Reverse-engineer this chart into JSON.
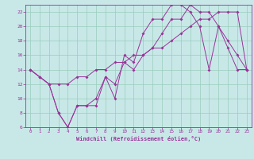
{
  "xlabel": "Windchill (Refroidissement éolien,°C)",
  "bg_color": "#c8e8e8",
  "line_color": "#993399",
  "grid_color": "#99ccbb",
  "xlim": [
    -0.5,
    23.5
  ],
  "ylim": [
    6,
    23
  ],
  "xticks": [
    0,
    1,
    2,
    3,
    4,
    5,
    6,
    7,
    8,
    9,
    10,
    11,
    12,
    13,
    14,
    15,
    16,
    17,
    18,
    19,
    20,
    21,
    22,
    23
  ],
  "yticks": [
    6,
    8,
    10,
    12,
    14,
    16,
    18,
    20,
    22
  ],
  "series1_x": [
    0,
    1,
    2,
    3,
    4,
    5,
    6,
    7,
    8,
    9,
    10,
    11,
    12,
    13,
    14,
    15,
    16,
    17,
    18,
    19,
    20,
    21,
    22,
    23
  ],
  "series1_y": [
    14,
    13,
    12,
    8,
    6,
    9,
    9,
    9,
    13,
    10,
    16,
    15,
    19,
    21,
    21,
    23,
    23,
    22,
    20,
    14,
    20,
    18,
    16,
    14
  ],
  "series2_x": [
    0,
    1,
    2,
    3,
    4,
    5,
    6,
    7,
    8,
    9,
    10,
    11,
    12,
    13,
    14,
    15,
    16,
    17,
    18,
    19,
    20,
    21,
    22,
    23
  ],
  "series2_y": [
    14,
    13,
    12,
    12,
    12,
    13,
    13,
    14,
    14,
    15,
    15,
    16,
    16,
    17,
    17,
    18,
    19,
    20,
    21,
    21,
    22,
    22,
    22,
    14
  ],
  "series3_x": [
    0,
    1,
    2,
    3,
    4,
    5,
    6,
    7,
    8,
    9,
    10,
    11,
    12,
    13,
    14,
    15,
    16,
    17,
    18,
    19,
    20,
    21,
    22,
    23
  ],
  "series3_y": [
    14,
    13,
    12,
    8,
    6,
    9,
    9,
    10,
    13,
    12,
    15,
    14,
    16,
    17,
    19,
    21,
    21,
    23,
    22,
    22,
    20,
    17,
    14,
    14
  ]
}
